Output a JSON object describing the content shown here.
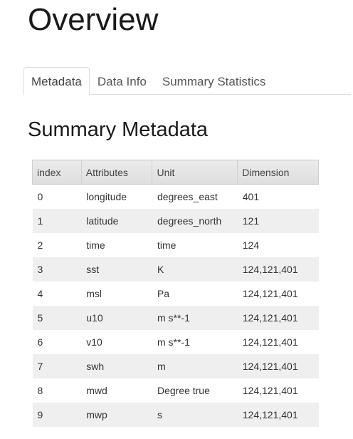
{
  "header": {
    "title": "Overview"
  },
  "tabs": [
    {
      "label": "Metadata",
      "active": true
    },
    {
      "label": "Data Info",
      "active": false
    },
    {
      "label": "Summary Statistics",
      "active": false
    }
  ],
  "section": {
    "title": "Summary Metadata"
  },
  "table": {
    "columns": [
      "index",
      "Attributes",
      "Unit",
      "Dimension"
    ],
    "rows": [
      [
        "0",
        "longitude",
        "degrees_east",
        "401"
      ],
      [
        "1",
        "latitude",
        "degrees_north",
        "121"
      ],
      [
        "2",
        "time",
        "time",
        "124"
      ],
      [
        "3",
        "sst",
        "K",
        "124,121,401"
      ],
      [
        "4",
        "msl",
        "Pa",
        "124,121,401"
      ],
      [
        "5",
        "u10",
        "m s**-1",
        "124,121,401"
      ],
      [
        "6",
        "v10",
        "m s**-1",
        "124,121,401"
      ],
      [
        "7",
        "swh",
        "m",
        "124,121,401"
      ],
      [
        "8",
        "mwd",
        "Degree true",
        "124,121,401"
      ],
      [
        "9",
        "mwp",
        "s",
        "124,121,401"
      ]
    ]
  }
}
